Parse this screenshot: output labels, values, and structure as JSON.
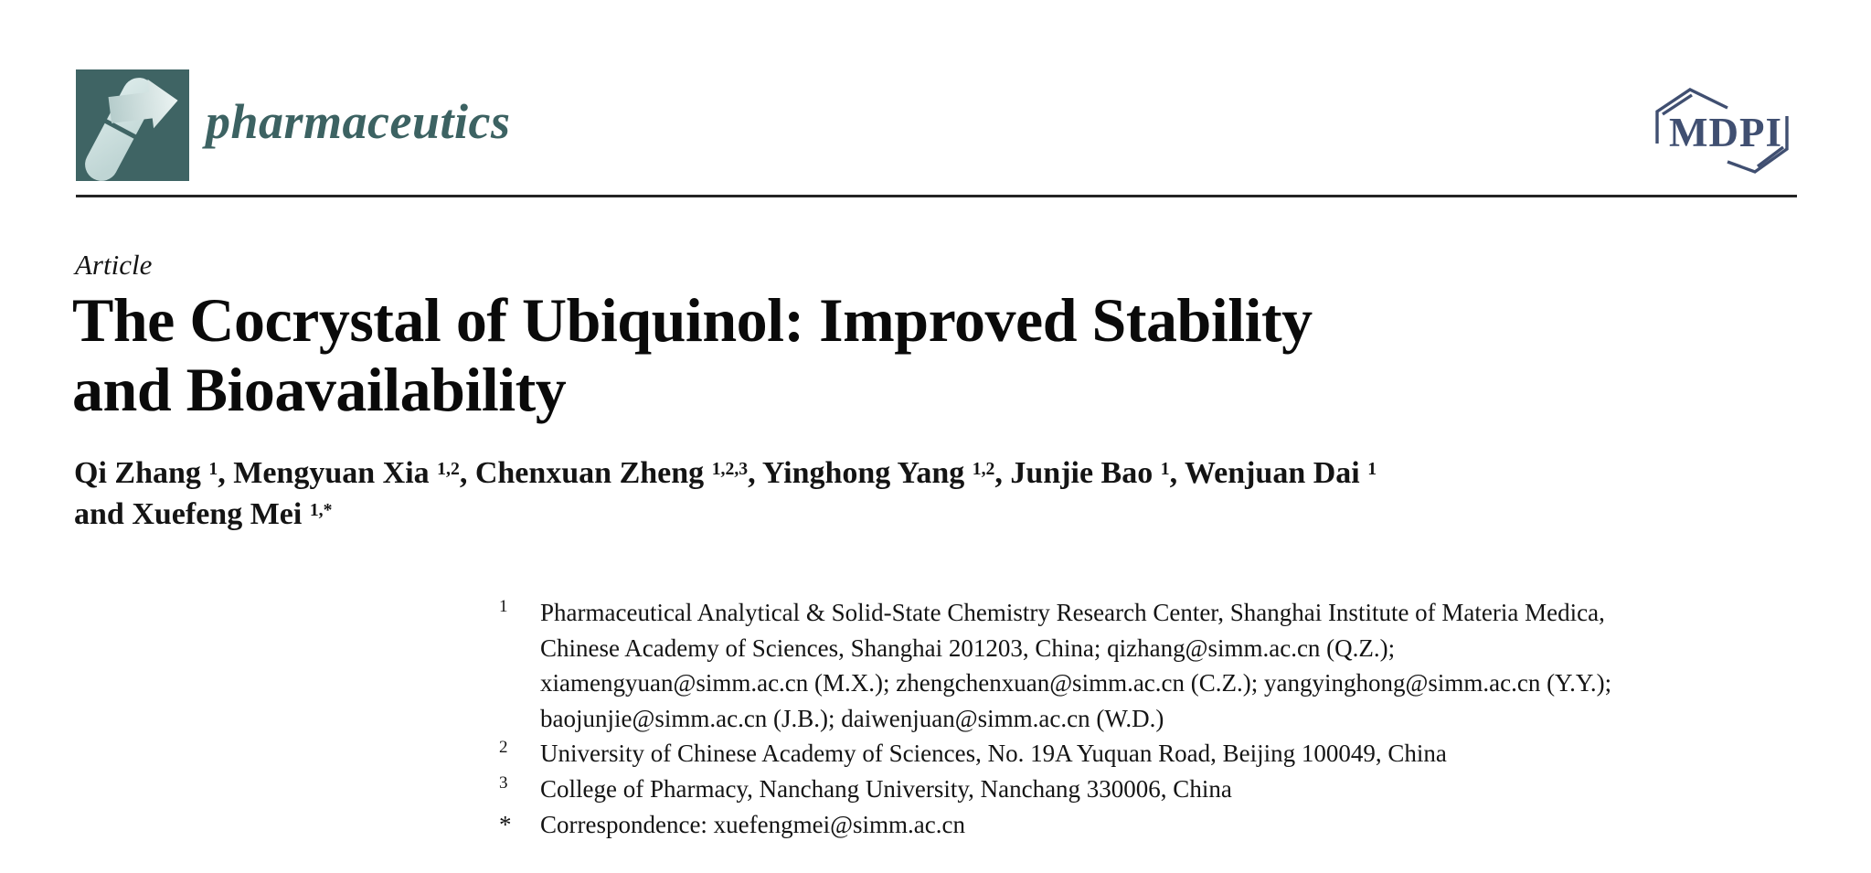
{
  "header": {
    "journal_name": "pharmaceutics",
    "mdpi_wordmark": "MDPI"
  },
  "article": {
    "type": "Article",
    "title_line1": "The Cocrystal of Ubiquinol: Improved Stability",
    "title_line2": "and Bioavailability"
  },
  "authors": {
    "lines": [
      {
        "segments": [
          {
            "text": "Qi Zhang ",
            "sup": "1"
          },
          {
            "text": ", Mengyuan Xia ",
            "sup": "1,2"
          },
          {
            "text": ", Chenxuan Zheng ",
            "sup": "1,2,3"
          },
          {
            "text": ", Yinghong Yang ",
            "sup": "1,2"
          },
          {
            "text": ", Junjie Bao ",
            "sup": "1"
          },
          {
            "text": ", Wenjuan Dai ",
            "sup": "1"
          }
        ]
      },
      {
        "segments": [
          {
            "text": "and Xuefeng Mei ",
            "sup": "1,*"
          }
        ]
      }
    ]
  },
  "affiliations": [
    {
      "marker": "1",
      "lines": [
        "Pharmaceutical Analytical & Solid-State Chemistry Research Center, Shanghai Institute of Materia Medica,",
        "Chinese Academy of Sciences, Shanghai 201203, China; qizhang@simm.ac.cn (Q.Z.);",
        "xiamengyuan@simm.ac.cn (M.X.); zhengchenxuan@simm.ac.cn (C.Z.); yangyinghong@simm.ac.cn (Y.Y.);",
        "baojunjie@simm.ac.cn (J.B.); daiwenjuan@simm.ac.cn (W.D.)"
      ]
    },
    {
      "marker": "2",
      "lines": [
        "University of Chinese Academy of Sciences, No. 19A Yuquan Road, Beijing 100049, China"
      ]
    },
    {
      "marker": "3",
      "lines": [
        "College of Pharmacy, Nanchang University, Nanchang 330006, China"
      ]
    },
    {
      "marker": "*",
      "lines": [
        "Correspondence: xuefengmei@simm.ac.cn"
      ]
    }
  ],
  "colors": {
    "journal_teal": "#3c6262",
    "logo_square": "#3f6464",
    "logo_pill_light": "#dcebea",
    "logo_pill_dark": "#bfd5d4",
    "logo_arrow_light": "#ecf4f3",
    "logo_arrow_dark": "#b5cccb",
    "mdpi_blue": "#404f71",
    "rule": "#242424",
    "text": "#141414"
  }
}
